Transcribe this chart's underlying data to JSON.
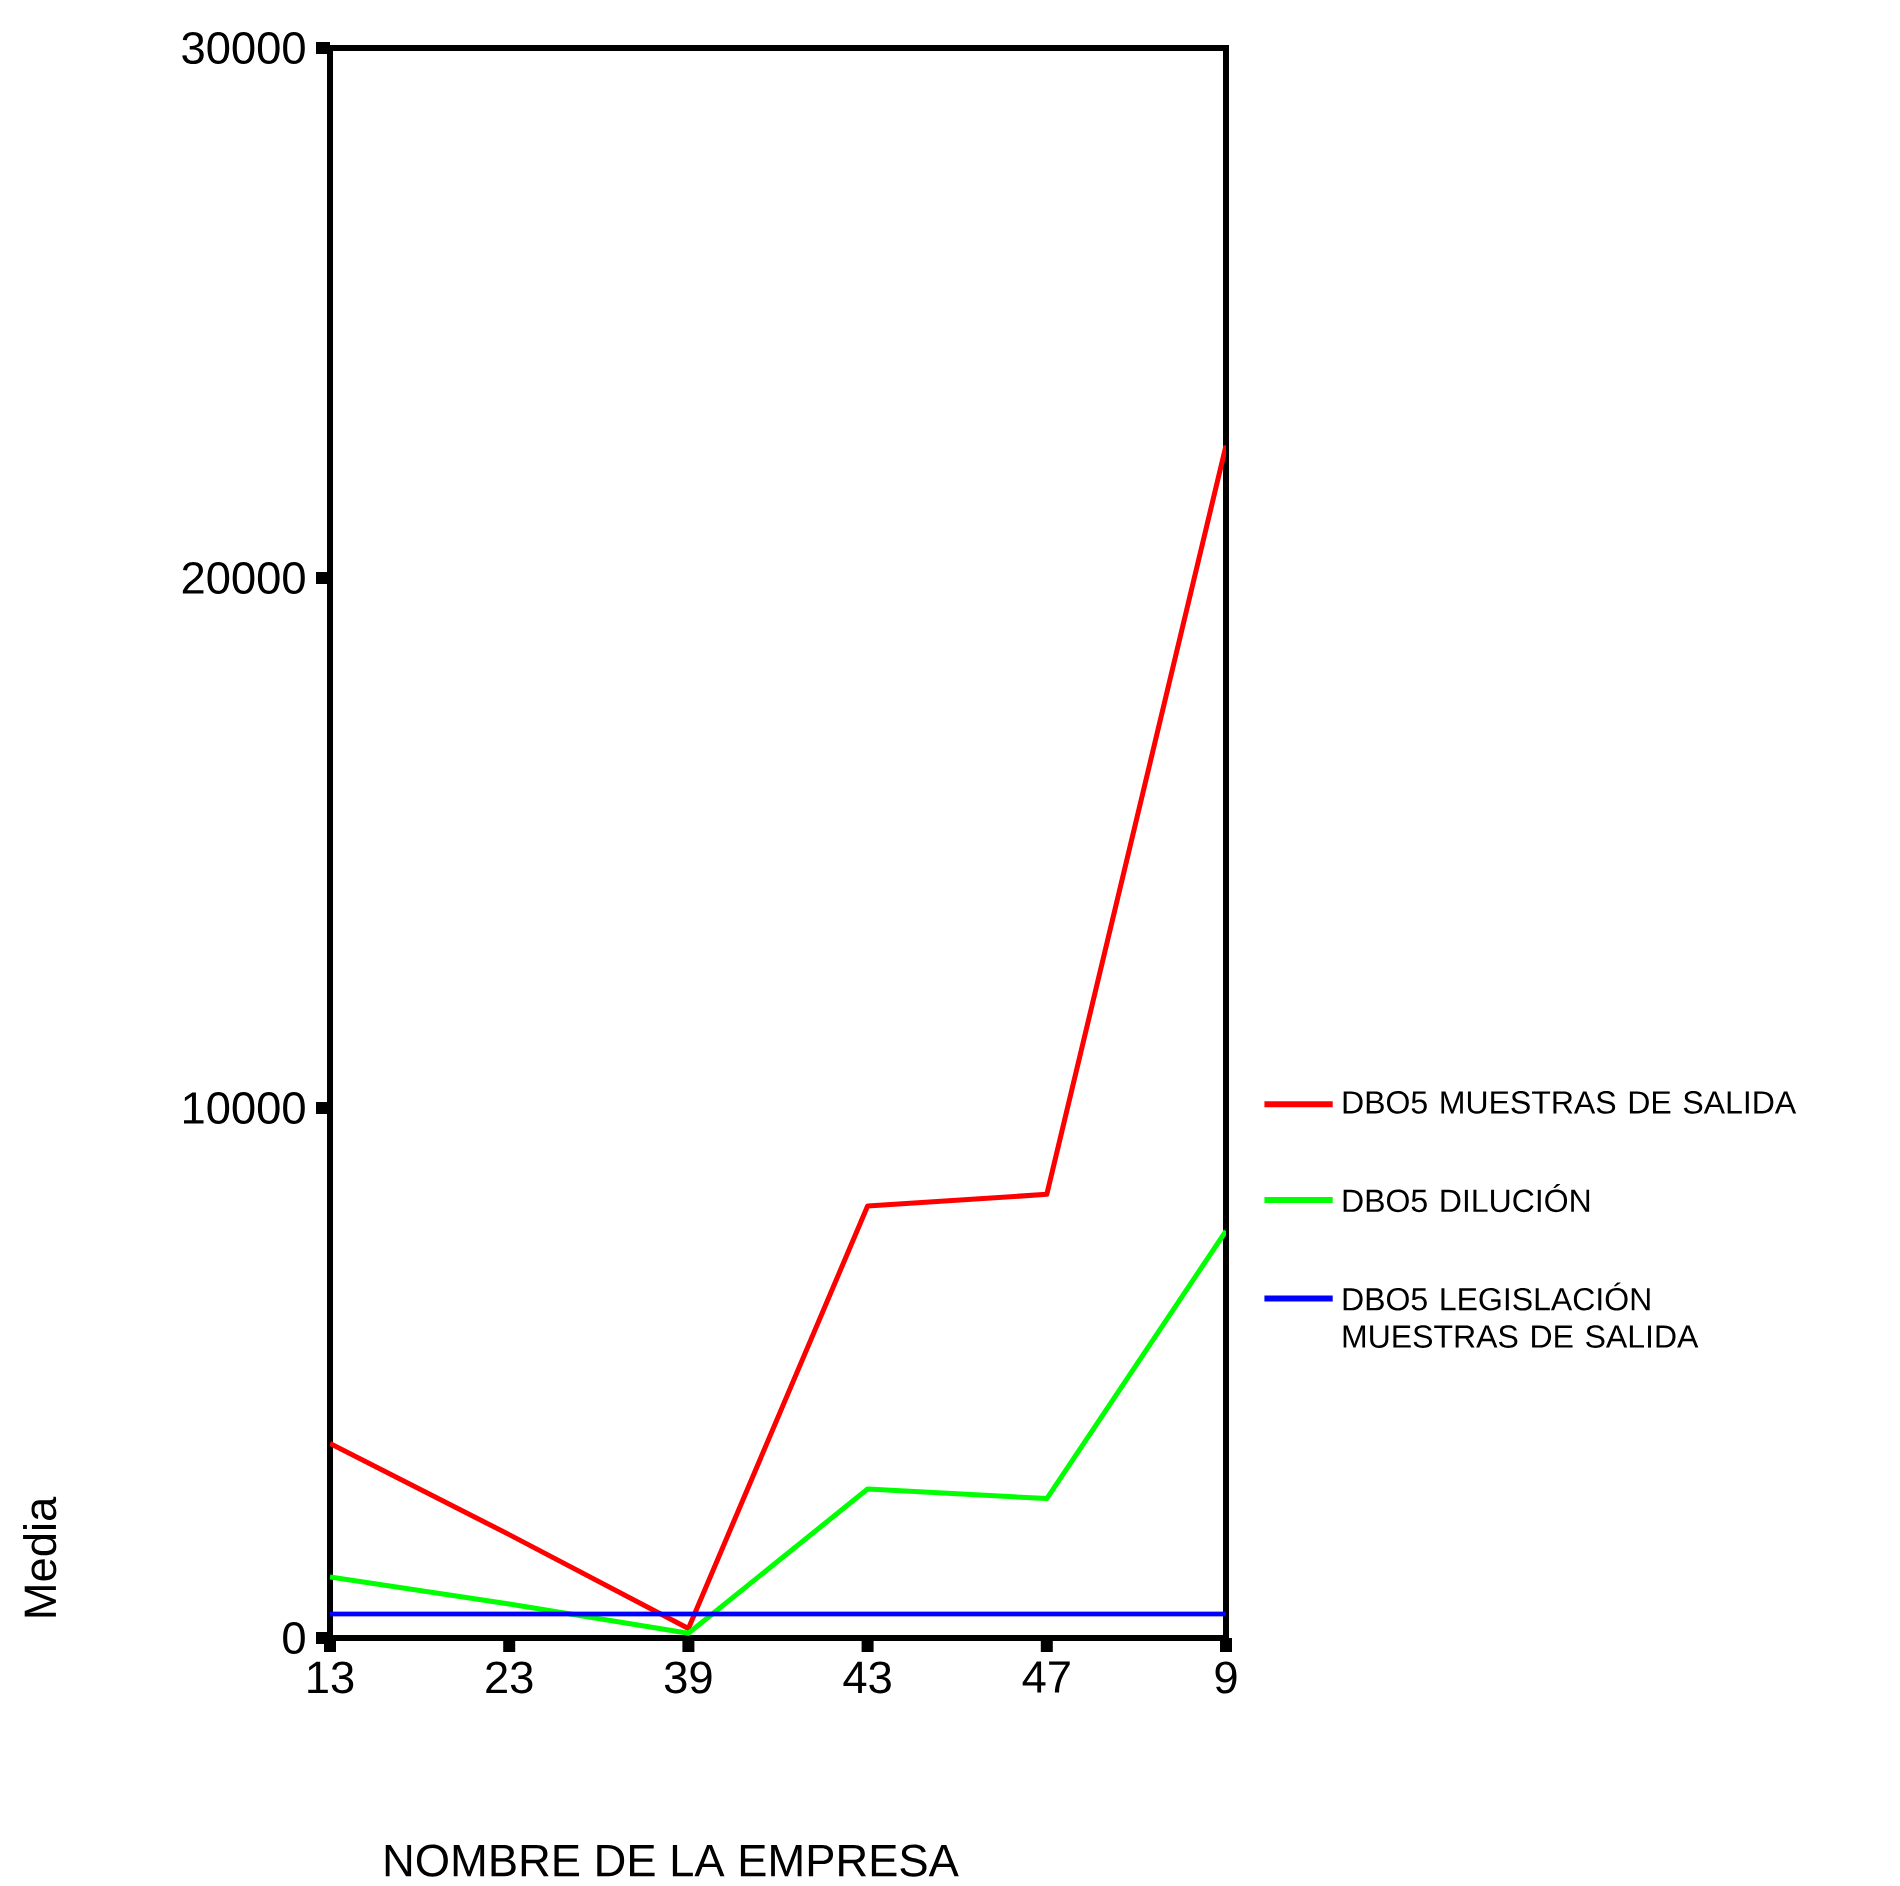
{
  "chart_data": {
    "type": "line",
    "xlabel": "NOMBRE DE LA EMPRESA",
    "ylabel": "Media",
    "categories": [
      "13",
      "23",
      "39",
      "43",
      "47",
      "9"
    ],
    "series": [
      {
        "name": "DBO5 MUESTRAS DE SALIDA",
        "color": "#ff0000",
        "values": [
          3670,
          1950,
          180,
          8150,
          8370,
          22500
        ]
      },
      {
        "name": "DBO5 DILUCIÓN",
        "color": "#00ff00",
        "values": [
          1150,
          640,
          90,
          2810,
          2630,
          7680
        ]
      },
      {
        "name": "DBO5 LEGISLACIÓN MUESTRAS DE SALIDA",
        "color": "#0000ff",
        "values": [
          450,
          450,
          450,
          450,
          450,
          450
        ]
      }
    ],
    "ylim": [
      0,
      30000
    ],
    "yticks": [
      0,
      10000,
      20000,
      30000
    ],
    "grid": false,
    "legend": "right",
    "marker": "none",
    "line_style": "solid"
  }
}
